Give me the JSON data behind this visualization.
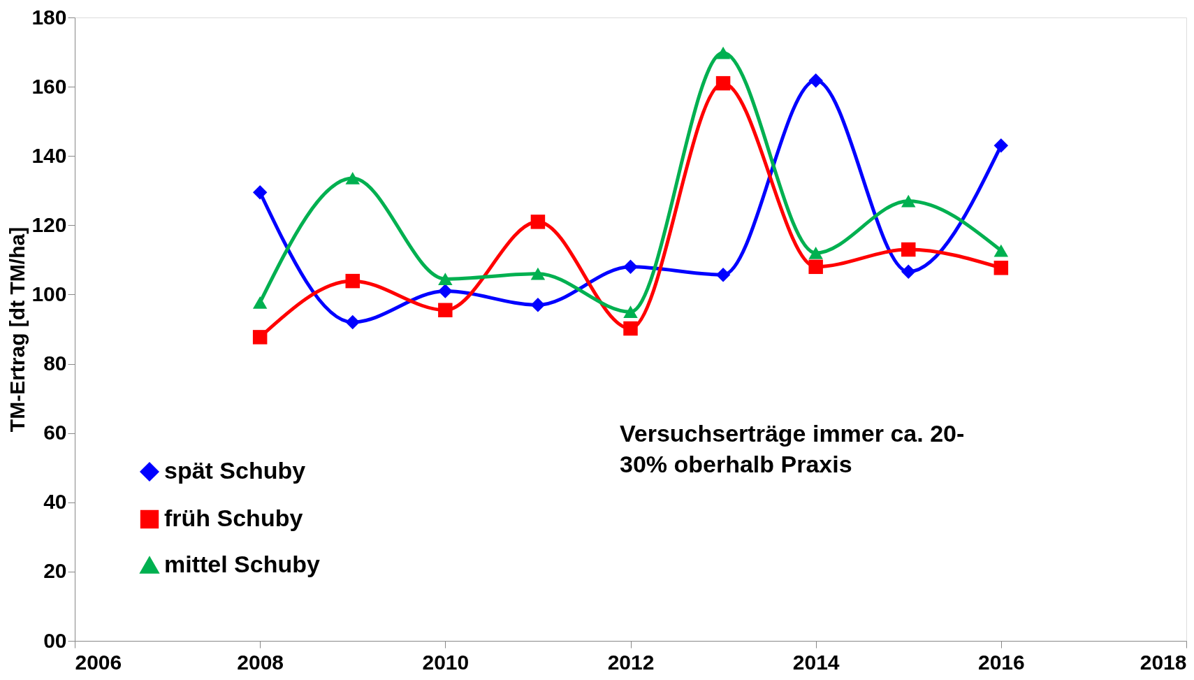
{
  "chart_data": {
    "type": "line",
    "ylabel": "TM-Ertrag [dt TM/ha]",
    "x": [
      2008,
      2009,
      2010,
      2011,
      2012,
      2013,
      2014,
      2015,
      2016
    ],
    "series": [
      {
        "name": "spät Schuby",
        "color": "#0000ff",
        "marker": "diamond",
        "values": [
          129.5,
          92,
          101,
          97,
          108,
          105.7,
          161.8,
          106.6,
          143
        ]
      },
      {
        "name": "früh Schuby",
        "color": "#ff0000",
        "marker": "square",
        "values": [
          87.7,
          103.9,
          95.5,
          121,
          90.2,
          161,
          108,
          113,
          107.7
        ]
      },
      {
        "name": "mittel Schuby",
        "color": "#00b050",
        "marker": "triangle",
        "values": [
          97.7,
          133.6,
          104.5,
          106,
          95,
          169.8,
          112,
          127,
          112.7
        ]
      }
    ],
    "xlim": [
      2006,
      2018
    ],
    "xticks": [
      2006,
      2008,
      2010,
      2012,
      2014,
      2016,
      2018
    ],
    "ylim": [
      0,
      180
    ],
    "yticks": [
      {
        "value": 0,
        "label": "00"
      },
      20,
      40,
      60,
      80,
      100,
      120,
      140,
      160,
      180
    ],
    "grid": false,
    "legend": "bottom left",
    "line_style": "solid",
    "annotations": [
      "Versuchserträge immer ca. 20-\n30% oberhalb Praxis"
    ]
  }
}
